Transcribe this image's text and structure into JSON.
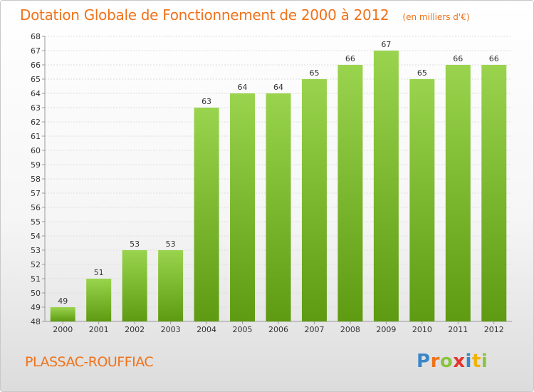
{
  "chart_data": {
    "type": "bar",
    "title": "Dotation Globale de Fonctionnement de 2000 à 2012",
    "unit_label": "(en milliers d'€)",
    "categories": [
      "2000",
      "2001",
      "2002",
      "2003",
      "2004",
      "2005",
      "2006",
      "2007",
      "2008",
      "2009",
      "2010",
      "2011",
      "2012"
    ],
    "values": [
      49,
      51,
      53,
      53,
      63,
      64,
      64,
      65,
      66,
      67,
      65,
      66,
      66
    ],
    "ylim": [
      48,
      68
    ],
    "ytick_step": 1,
    "grid": true,
    "xlabel": "",
    "ylabel": "",
    "colors": {
      "bar_top": "#9ad44e",
      "bar_bottom": "#5e9a12",
      "grid": "#dddddd",
      "title": "#f0721a"
    }
  },
  "footer": {
    "commune": "PLASSAC-ROUFFIAC"
  },
  "logo": {
    "letters": [
      "P",
      "r",
      "o",
      "x",
      "i",
      "t",
      "i"
    ],
    "colors": [
      "#3a86c8",
      "#f0721a",
      "#8ac43f",
      "#e8332a",
      "#3a86c8",
      "#f0b400",
      "#8ac43f"
    ]
  }
}
